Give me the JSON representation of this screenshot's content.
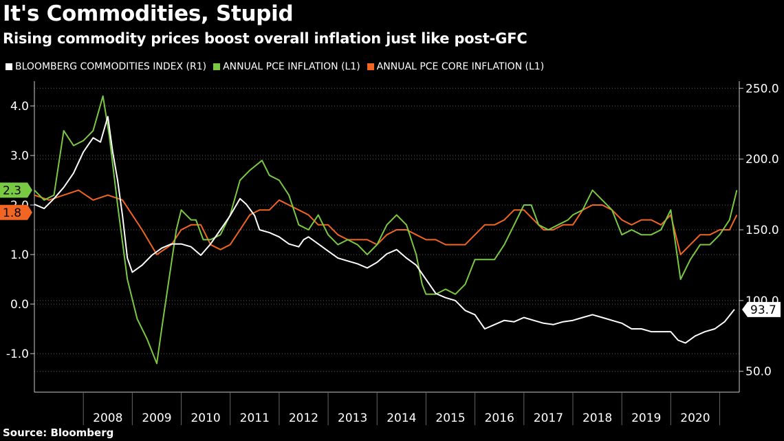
{
  "header": {
    "title": "It's Commodities, Stupid",
    "subtitle": "Rising commodity prices boost overall inflation just like post-GFC"
  },
  "footer": {
    "source": "Source: Bloomberg"
  },
  "colors": {
    "background": "#000000",
    "commodities": "#ffffff",
    "pce": "#7ac943",
    "core": "#f26522",
    "grid": "#666666",
    "axis": "#cccccc"
  },
  "chart_data": {
    "type": "line",
    "legend_position": "top-left",
    "grid": true,
    "x_range": [
      2007.0,
      2021.4
    ],
    "x_tick_labels": [
      "2008",
      "2009",
      "2010",
      "2011",
      "2012",
      "2013",
      "2014",
      "2015",
      "2016",
      "2017",
      "2018",
      "2019",
      "2020"
    ],
    "left_axis": {
      "ylim": [
        -1.5,
        4.5
      ],
      "ticks": [
        -1.0,
        0.0,
        1.0,
        2.0,
        3.0,
        4.0
      ],
      "tick_labels": [
        "-1.0",
        "0.0",
        "1.0",
        "2.0",
        "3.0",
        "4.0"
      ]
    },
    "right_axis": {
      "ylim": [
        45,
        255
      ],
      "ticks": [
        50,
        100,
        150,
        200,
        250
      ],
      "tick_labels": [
        "50.0",
        "100.0",
        "150.0",
        "200.0",
        "250.0"
      ]
    },
    "series": [
      {
        "name": "BLOOMBERG COMMODITIES INDEX (R1)",
        "axis": "right",
        "last_label": "93.7",
        "x": [
          2007.0,
          2007.2,
          2007.4,
          2007.6,
          2007.8,
          2008.0,
          2008.2,
          2008.35,
          2008.5,
          2008.6,
          2008.7,
          2008.8,
          2008.9,
          2009.0,
          2009.2,
          2009.4,
          2009.6,
          2009.8,
          2010.0,
          2010.2,
          2010.4,
          2010.6,
          2010.8,
          2011.0,
          2011.2,
          2011.33,
          2011.5,
          2011.6,
          2011.8,
          2012.0,
          2012.2,
          2012.4,
          2012.5,
          2012.6,
          2012.8,
          2013.0,
          2013.2,
          2013.4,
          2013.6,
          2013.8,
          2014.0,
          2014.2,
          2014.4,
          2014.6,
          2014.8,
          2015.0,
          2015.2,
          2015.4,
          2015.6,
          2015.8,
          2016.0,
          2016.2,
          2016.4,
          2016.6,
          2016.8,
          2017.0,
          2017.2,
          2017.4,
          2017.6,
          2017.8,
          2018.0,
          2018.2,
          2018.4,
          2018.6,
          2018.8,
          2019.0,
          2019.2,
          2019.4,
          2019.6,
          2019.8,
          2020.0,
          2020.15,
          2020.3,
          2020.5,
          2020.7,
          2020.9,
          2021.1,
          2021.3
        ],
        "y": [
          168,
          165,
          172,
          180,
          190,
          205,
          215,
          212,
          230,
          205,
          185,
          160,
          130,
          120,
          125,
          132,
          137,
          140,
          140,
          138,
          132,
          140,
          150,
          160,
          172,
          168,
          160,
          150,
          148,
          145,
          140,
          138,
          143,
          145,
          140,
          135,
          130,
          128,
          126,
          123,
          127,
          133,
          136,
          130,
          125,
          115,
          105,
          102,
          100,
          93,
          90,
          80,
          83,
          86,
          85,
          88,
          86,
          84,
          83,
          85,
          86,
          88,
          90,
          88,
          86,
          84,
          80,
          80,
          78,
          78,
          78,
          72,
          70,
          75,
          78,
          80,
          85,
          93.7
        ]
      },
      {
        "name": "ANNUAL PCE INFLATION (L1)",
        "axis": "left",
        "last_label": "2.3",
        "x": [
          2007.0,
          2007.2,
          2007.4,
          2007.6,
          2007.8,
          2008.0,
          2008.2,
          2008.4,
          2008.53,
          2008.7,
          2008.9,
          2009.1,
          2009.3,
          2009.5,
          2009.6,
          2009.75,
          2009.9,
          2010.0,
          2010.1,
          2010.2,
          2010.3,
          2010.45,
          2010.6,
          2010.8,
          2011.0,
          2011.2,
          2011.4,
          2011.65,
          2011.8,
          2012.0,
          2012.2,
          2012.4,
          2012.6,
          2012.8,
          2013.0,
          2013.2,
          2013.4,
          2013.6,
          2013.8,
          2014.0,
          2014.2,
          2014.4,
          2014.6,
          2014.8,
          2014.92,
          2015.0,
          2015.2,
          2015.4,
          2015.6,
          2015.8,
          2016.0,
          2016.2,
          2016.4,
          2016.6,
          2016.8,
          2017.0,
          2017.15,
          2017.3,
          2017.5,
          2017.7,
          2017.9,
          2018.0,
          2018.2,
          2018.4,
          2018.6,
          2018.8,
          2019.0,
          2019.2,
          2019.4,
          2019.6,
          2019.8,
          2020.0,
          2020.2,
          2020.4,
          2020.6,
          2020.8,
          2021.0,
          2021.2,
          2021.35
        ],
        "y": [
          2.3,
          2.1,
          2.2,
          3.5,
          3.2,
          3.3,
          3.5,
          4.2,
          3.4,
          2.0,
          0.5,
          -0.3,
          -0.7,
          -1.2,
          -0.5,
          0.5,
          1.5,
          1.9,
          1.8,
          1.7,
          1.7,
          1.3,
          1.3,
          1.4,
          1.8,
          2.5,
          2.7,
          2.9,
          2.6,
          2.5,
          2.2,
          1.6,
          1.5,
          1.8,
          1.4,
          1.2,
          1.3,
          1.2,
          1.0,
          1.2,
          1.6,
          1.8,
          1.6,
          1.0,
          0.4,
          0.2,
          0.2,
          0.3,
          0.2,
          0.4,
          0.9,
          0.9,
          0.9,
          1.2,
          1.6,
          2.0,
          2.0,
          1.6,
          1.5,
          1.6,
          1.7,
          1.8,
          1.9,
          2.3,
          2.1,
          1.9,
          1.4,
          1.5,
          1.4,
          1.4,
          1.5,
          1.9,
          0.5,
          0.9,
          1.2,
          1.2,
          1.4,
          1.7,
          2.3
        ]
      },
      {
        "name": "ANNUAL PCE CORE INFLATION (L1)",
        "axis": "left",
        "last_label": "1.8",
        "x": [
          2007.0,
          2007.3,
          2007.6,
          2007.9,
          2008.2,
          2008.5,
          2008.8,
          2009.0,
          2009.2,
          2009.5,
          2009.8,
          2010.0,
          2010.2,
          2010.4,
          2010.6,
          2010.8,
          2011.0,
          2011.2,
          2011.4,
          2011.6,
          2011.8,
          2012.0,
          2012.2,
          2012.4,
          2012.6,
          2012.8,
          2013.0,
          2013.2,
          2013.4,
          2013.6,
          2013.8,
          2014.0,
          2014.2,
          2014.4,
          2014.6,
          2014.8,
          2015.0,
          2015.2,
          2015.4,
          2015.6,
          2015.8,
          2016.0,
          2016.2,
          2016.4,
          2016.6,
          2016.8,
          2017.0,
          2017.2,
          2017.4,
          2017.6,
          2017.8,
          2018.0,
          2018.2,
          2018.4,
          2018.6,
          2018.8,
          2019.0,
          2019.2,
          2019.4,
          2019.6,
          2019.8,
          2020.0,
          2020.2,
          2020.4,
          2020.6,
          2020.8,
          2021.0,
          2021.2,
          2021.35
        ],
        "y": [
          2.2,
          2.1,
          2.2,
          2.3,
          2.1,
          2.2,
          2.1,
          1.8,
          1.5,
          1.0,
          1.2,
          1.5,
          1.6,
          1.6,
          1.2,
          1.1,
          1.2,
          1.5,
          1.8,
          1.9,
          1.9,
          2.1,
          2.0,
          1.9,
          1.8,
          1.6,
          1.6,
          1.4,
          1.3,
          1.3,
          1.3,
          1.2,
          1.4,
          1.5,
          1.5,
          1.4,
          1.3,
          1.3,
          1.2,
          1.2,
          1.2,
          1.4,
          1.6,
          1.6,
          1.7,
          1.9,
          1.9,
          1.7,
          1.5,
          1.5,
          1.6,
          1.6,
          1.9,
          2.0,
          2.0,
          1.9,
          1.7,
          1.6,
          1.7,
          1.7,
          1.6,
          1.8,
          1.0,
          1.2,
          1.4,
          1.4,
          1.5,
          1.5,
          1.8
        ]
      }
    ]
  }
}
